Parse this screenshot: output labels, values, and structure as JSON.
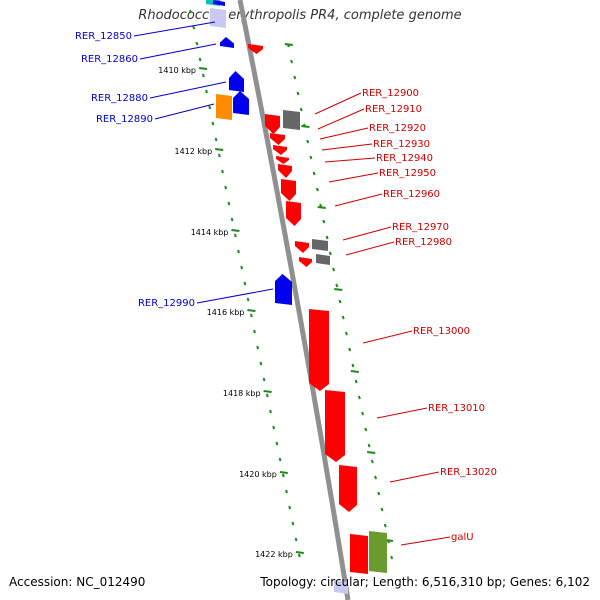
{
  "title": "Rhodococcus erythropolis PR4, complete genome",
  "footer": {
    "accession": "Accession: NC_012490",
    "summary": "Topology: circular; Length: 6,516,310 bp; Genes: 6,102"
  },
  "colors": {
    "backbone": "#909090",
    "tick": "#1a8a1a",
    "label_blue": "#0000cc",
    "label_red": "#cc0000",
    "gene_red": "#ff0000",
    "gene_blue": "#0000ee",
    "gene_gray": "#666666",
    "gene_orange": "#ff8c00",
    "gene_olive": "#6b9a2e",
    "gene_cyan": "#00c0c0",
    "gene_lavender": "#c8c8f0"
  },
  "scale_labels": [
    "1410 kbp",
    "1412 kbp",
    "1414 kbp",
    "1416 kbp",
    "1418 kbp",
    "1420 kbp",
    "1422 kbp"
  ],
  "genes_left": [
    {
      "label": "RER_12850",
      "color": "gene_blue"
    },
    {
      "label": "RER_12860",
      "color": "gene_blue"
    },
    {
      "label": "RER_12880",
      "color": "gene_blue"
    },
    {
      "label": "RER_12890",
      "color": "gene_orange"
    },
    {
      "label": "RER_12990",
      "color": "gene_blue"
    }
  ],
  "genes_right": [
    {
      "label": "RER_12900",
      "color": "gene_gray"
    },
    {
      "label": "RER_12910",
      "color": "gene_red"
    },
    {
      "label": "RER_12920",
      "color": "gene_red"
    },
    {
      "label": "RER_12930",
      "color": "gene_red"
    },
    {
      "label": "RER_12940",
      "color": "gene_red"
    },
    {
      "label": "RER_12950",
      "color": "gene_red"
    },
    {
      "label": "RER_12960",
      "color": "gene_red"
    },
    {
      "label": "RER_12970",
      "color": "gene_gray"
    },
    {
      "label": "RER_12980",
      "color": "gene_gray"
    },
    {
      "label": "RER_13000",
      "color": "gene_red"
    },
    {
      "label": "RER_13010",
      "color": "gene_red"
    },
    {
      "label": "RER_13020",
      "color": "gene_red"
    },
    {
      "label": "galU",
      "color": "gene_olive"
    }
  ]
}
